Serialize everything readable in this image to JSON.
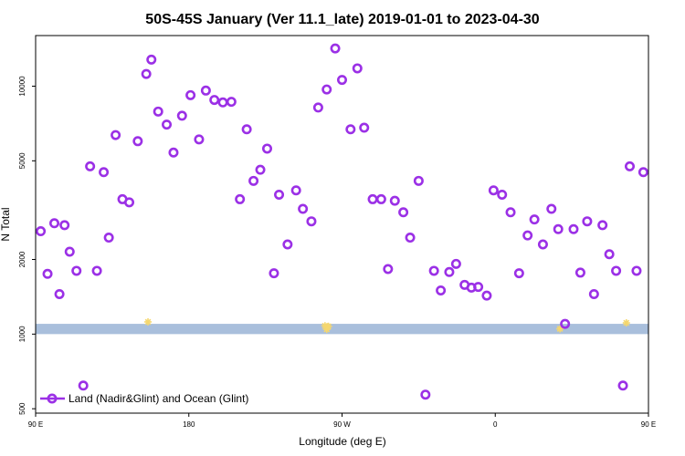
{
  "chart_data": {
    "type": "scatter",
    "title": "50S-45S January (Ver 11.1_late)   2019-01-01 to 2023-04-30",
    "xlabel": "Longitude (deg E)",
    "ylabel": "N Total",
    "xscale": "linear",
    "yscale": "log",
    "xlim": [
      90,
      450
    ],
    "ylim": [
      480,
      16000
    ],
    "x_ticks": [
      {
        "value": 90,
        "label": "90 E"
      },
      {
        "value": 180,
        "label": "180"
      },
      {
        "value": 270,
        "label": "90 W"
      },
      {
        "value": 360,
        "label": "0"
      },
      {
        "value": 450,
        "label": "90 E"
      },
      {
        "value": 540,
        "label": "180"
      }
    ],
    "y_ticks": [
      {
        "value": 500,
        "label": "500"
      },
      {
        "value": 1000,
        "label": "1000"
      },
      {
        "value": 2000,
        "label": "2000"
      },
      {
        "value": 5000,
        "label": "5000"
      },
      {
        "value": 10000,
        "label": "10000"
      }
    ],
    "legend": {
      "position": "bottom-left",
      "entries": [
        "Land (Nadir&Glint) and Ocean (Glint)"
      ]
    },
    "band": {
      "y_from": 1000,
      "y_to": 1100,
      "color": "#a9bfdc"
    },
    "series": [
      {
        "name": "Land (Nadir&Glint) and Ocean (Glint)",
        "color": "#9b30e6",
        "marker": "open-circle",
        "points": [
          {
            "x": 93,
            "y": 2600
          },
          {
            "x": 97,
            "y": 1750
          },
          {
            "x": 101,
            "y": 2800
          },
          {
            "x": 104,
            "y": 1450
          },
          {
            "x": 107,
            "y": 2750
          },
          {
            "x": 110,
            "y": 2150
          },
          {
            "x": 114,
            "y": 1800
          },
          {
            "x": 118,
            "y": 620
          },
          {
            "x": 122,
            "y": 4750
          },
          {
            "x": 126,
            "y": 1800
          },
          {
            "x": 130,
            "y": 4500
          },
          {
            "x": 133,
            "y": 2450
          },
          {
            "x": 137,
            "y": 6350
          },
          {
            "x": 141,
            "y": 3500
          },
          {
            "x": 145,
            "y": 3400
          },
          {
            "x": 150,
            "y": 6000
          },
          {
            "x": 155,
            "y": 11200
          },
          {
            "x": 158,
            "y": 12800
          },
          {
            "x": 162,
            "y": 7900
          },
          {
            "x": 167,
            "y": 7000
          },
          {
            "x": 171,
            "y": 5400
          },
          {
            "x": 176,
            "y": 7600
          },
          {
            "x": 181,
            "y": 9200
          },
          {
            "x": 186,
            "y": 6100
          },
          {
            "x": 190,
            "y": 9600
          },
          {
            "x": 195,
            "y": 8800
          },
          {
            "x": 200,
            "y": 8600
          },
          {
            "x": 205,
            "y": 8650
          },
          {
            "x": 210,
            "y": 3500
          },
          {
            "x": 214,
            "y": 6700
          },
          {
            "x": 218,
            "y": 4150
          },
          {
            "x": 222,
            "y": 4600
          },
          {
            "x": 226,
            "y": 5600
          },
          {
            "x": 230,
            "y": 1760
          },
          {
            "x": 233,
            "y": 3650
          },
          {
            "x": 238,
            "y": 2300
          },
          {
            "x": 243,
            "y": 3800
          },
          {
            "x": 247,
            "y": 3200
          },
          {
            "x": 252,
            "y": 2850
          },
          {
            "x": 256,
            "y": 8200
          },
          {
            "x": 261,
            "y": 9700
          },
          {
            "x": 266,
            "y": 14200
          },
          {
            "x": 270,
            "y": 10600
          },
          {
            "x": 275,
            "y": 6700
          },
          {
            "x": 279,
            "y": 11800
          },
          {
            "x": 283,
            "y": 6800
          },
          {
            "x": 288,
            "y": 3500
          },
          {
            "x": 293,
            "y": 3500
          },
          {
            "x": 297,
            "y": 1830
          },
          {
            "x": 301,
            "y": 3450
          },
          {
            "x": 306,
            "y": 3100
          },
          {
            "x": 310,
            "y": 2450
          },
          {
            "x": 315,
            "y": 4150
          },
          {
            "x": 319,
            "y": 570
          },
          {
            "x": 324,
            "y": 1800
          },
          {
            "x": 328,
            "y": 1500
          },
          {
            "x": 333,
            "y": 1780
          },
          {
            "x": 337,
            "y": 1920
          },
          {
            "x": 342,
            "y": 1580
          },
          {
            "x": 346,
            "y": 1540
          },
          {
            "x": 350,
            "y": 1550
          },
          {
            "x": 355,
            "y": 1430
          },
          {
            "x": 359,
            "y": 3800
          },
          {
            "x": 364,
            "y": 3650
          },
          {
            "x": 369,
            "y": 3100
          },
          {
            "x": 374,
            "y": 1760
          },
          {
            "x": 379,
            "y": 2500
          },
          {
            "x": 383,
            "y": 2900
          },
          {
            "x": 388,
            "y": 2300
          },
          {
            "x": 393,
            "y": 3200
          },
          {
            "x": 397,
            "y": 2650
          },
          {
            "x": 401,
            "y": 1100
          },
          {
            "x": 406,
            "y": 2650
          },
          {
            "x": 410,
            "y": 1770
          },
          {
            "x": 414,
            "y": 2850
          },
          {
            "x": 418,
            "y": 1450
          },
          {
            "x": 423,
            "y": 2750
          },
          {
            "x": 427,
            "y": 2100
          },
          {
            "x": 431,
            "y": 1800
          },
          {
            "x": 435,
            "y": 620
          },
          {
            "x": 439,
            "y": 4750
          },
          {
            "x": 443,
            "y": 1800
          },
          {
            "x": 447,
            "y": 4500
          }
        ]
      }
    ],
    "highlights": {
      "color": "#f5d76e",
      "marker": "asterisk",
      "points": [
        {
          "x": 156,
          "y": 1120
        },
        {
          "x": 260,
          "y": 1080
        },
        {
          "x": 261,
          "y": 1045
        },
        {
          "x": 262,
          "y": 1075
        },
        {
          "x": 398,
          "y": 1050
        },
        {
          "x": 437,
          "y": 1110
        }
      ]
    }
  }
}
